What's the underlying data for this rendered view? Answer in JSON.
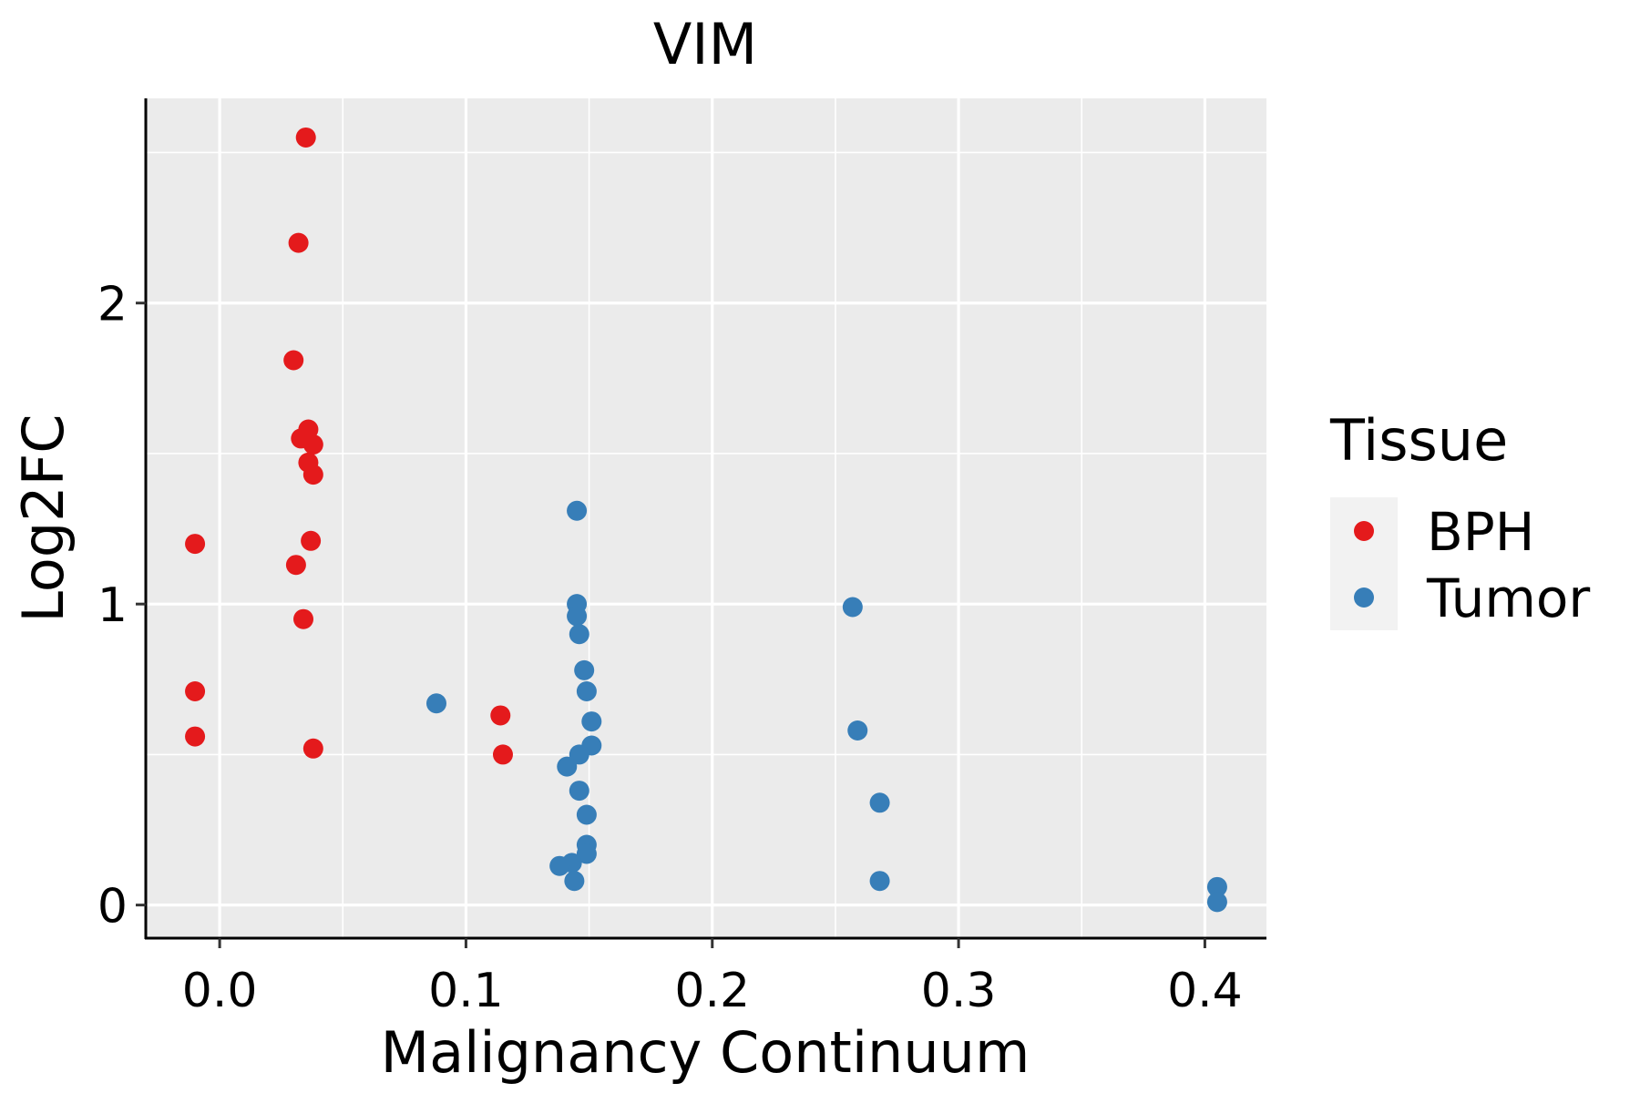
{
  "chart_data": {
    "type": "scatter",
    "title": "VIM",
    "xlabel": "Malignancy Continuum",
    "ylabel": "Log2FC",
    "xlim": [
      -0.03,
      0.425
    ],
    "ylim": [
      -0.11,
      2.68
    ],
    "x_ticks": [
      0.0,
      0.1,
      0.2,
      0.3,
      0.4
    ],
    "x_tick_labels": [
      "0.0",
      "0.1",
      "0.2",
      "0.3",
      "0.4"
    ],
    "x_minor_grid": [
      0.05,
      0.15,
      0.25,
      0.35
    ],
    "y_ticks": [
      0,
      1,
      2
    ],
    "y_tick_labels": [
      "0",
      "1",
      "2"
    ],
    "y_minor_grid": [
      0.5,
      1.5,
      2.5
    ],
    "grid": true,
    "legend": {
      "title": "Tissue",
      "position": "right",
      "entries": [
        "BPH",
        "Tumor"
      ]
    },
    "series": [
      {
        "name": "BPH",
        "color": "#E41A1C",
        "points": [
          {
            "x": 0.035,
            "y": 2.55
          },
          {
            "x": 0.032,
            "y": 2.2
          },
          {
            "x": 0.03,
            "y": 1.81
          },
          {
            "x": 0.036,
            "y": 1.58
          },
          {
            "x": 0.033,
            "y": 1.55
          },
          {
            "x": 0.038,
            "y": 1.53
          },
          {
            "x": 0.036,
            "y": 1.47
          },
          {
            "x": 0.038,
            "y": 1.43
          },
          {
            "x": -0.01,
            "y": 1.2
          },
          {
            "x": 0.037,
            "y": 1.21
          },
          {
            "x": 0.031,
            "y": 1.13
          },
          {
            "x": 0.034,
            "y": 0.95
          },
          {
            "x": -0.01,
            "y": 0.71
          },
          {
            "x": -0.01,
            "y": 0.56
          },
          {
            "x": 0.038,
            "y": 0.52
          },
          {
            "x": 0.114,
            "y": 0.63
          },
          {
            "x": 0.115,
            "y": 0.5
          }
        ]
      },
      {
        "name": "Tumor",
        "color": "#377EB8",
        "points": [
          {
            "x": 0.145,
            "y": 1.31
          },
          {
            "x": 0.145,
            "y": 1.0
          },
          {
            "x": 0.145,
            "y": 0.96
          },
          {
            "x": 0.146,
            "y": 0.9
          },
          {
            "x": 0.148,
            "y": 0.78
          },
          {
            "x": 0.149,
            "y": 0.71
          },
          {
            "x": 0.151,
            "y": 0.61
          },
          {
            "x": 0.151,
            "y": 0.53
          },
          {
            "x": 0.146,
            "y": 0.5
          },
          {
            "x": 0.141,
            "y": 0.46
          },
          {
            "x": 0.146,
            "y": 0.38
          },
          {
            "x": 0.149,
            "y": 0.3
          },
          {
            "x": 0.149,
            "y": 0.2
          },
          {
            "x": 0.149,
            "y": 0.17
          },
          {
            "x": 0.143,
            "y": 0.14
          },
          {
            "x": 0.138,
            "y": 0.13
          },
          {
            "x": 0.144,
            "y": 0.08
          },
          {
            "x": 0.088,
            "y": 0.67
          },
          {
            "x": 0.257,
            "y": 0.99
          },
          {
            "x": 0.259,
            "y": 0.58
          },
          {
            "x": 0.268,
            "y": 0.34
          },
          {
            "x": 0.268,
            "y": 0.08
          },
          {
            "x": 0.405,
            "y": 0.06
          },
          {
            "x": 0.405,
            "y": 0.01
          }
        ]
      }
    ]
  }
}
